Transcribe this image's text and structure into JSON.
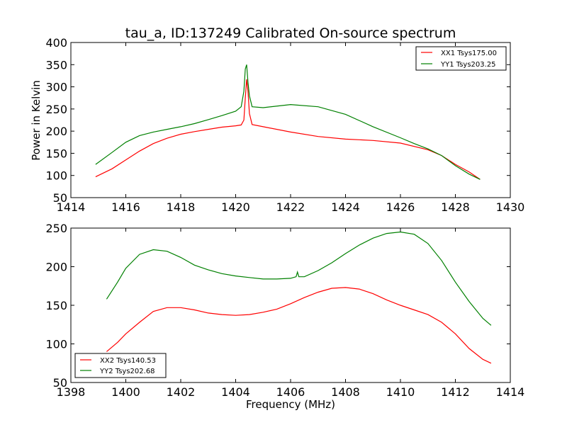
{
  "title": "tau_a, ID:137249 Calibrated On-source spectrum",
  "chart_data": [
    {
      "type": "line",
      "ylabel": "Power in Kelvin",
      "xlabel": "",
      "xlim": [
        1414,
        1430
      ],
      "ylim": [
        50,
        400
      ],
      "xticks": [
        1414,
        1416,
        1418,
        1420,
        1422,
        1424,
        1426,
        1428,
        1430
      ],
      "yticks": [
        50,
        100,
        150,
        200,
        250,
        300,
        350,
        400
      ],
      "legend": "top-right",
      "series": [
        {
          "name": "XX1 Tsys175.00",
          "color": "#ff0000",
          "points": [
            [
              1414.9,
              97
            ],
            [
              1415.5,
              115
            ],
            [
              1416,
              135
            ],
            [
              1416.5,
              155
            ],
            [
              1417,
              172
            ],
            [
              1417.5,
              184
            ],
            [
              1418,
              193
            ],
            [
              1418.5,
              199
            ],
            [
              1419,
              204
            ],
            [
              1419.5,
              209
            ],
            [
              1420,
              212
            ],
            [
              1420.2,
              214
            ],
            [
              1420.3,
              225
            ],
            [
              1420.35,
              275
            ],
            [
              1420.4,
              317
            ],
            [
              1420.45,
              290
            ],
            [
              1420.5,
              240
            ],
            [
              1420.6,
              215
            ],
            [
              1421,
              210
            ],
            [
              1422,
              198
            ],
            [
              1423,
              188
            ],
            [
              1424,
              182
            ],
            [
              1425,
              179
            ],
            [
              1426,
              173
            ],
            [
              1427,
              158
            ],
            [
              1427.5,
              145
            ],
            [
              1428,
              125
            ],
            [
              1428.5,
              108
            ],
            [
              1428.9,
              91
            ]
          ]
        },
        {
          "name": "YY1 Tsys203.25",
          "color": "#008000",
          "points": [
            [
              1414.9,
              125
            ],
            [
              1415.5,
              152
            ],
            [
              1416,
              175
            ],
            [
              1416.5,
              190
            ],
            [
              1417,
              198
            ],
            [
              1417.5,
              204
            ],
            [
              1418,
              210
            ],
            [
              1418.5,
              217
            ],
            [
              1419,
              226
            ],
            [
              1419.5,
              235
            ],
            [
              1420,
              245
            ],
            [
              1420.2,
              255
            ],
            [
              1420.3,
              290
            ],
            [
              1420.35,
              340
            ],
            [
              1420.4,
              350
            ],
            [
              1420.45,
              310
            ],
            [
              1420.5,
              280
            ],
            [
              1420.6,
              255
            ],
            [
              1421,
              253
            ],
            [
              1422,
              260
            ],
            [
              1423,
              255
            ],
            [
              1424,
              238
            ],
            [
              1425,
              210
            ],
            [
              1426,
              185
            ],
            [
              1426.5,
              172
            ],
            [
              1427,
              160
            ],
            [
              1427.5,
              145
            ],
            [
              1428,
              122
            ],
            [
              1428.5,
              103
            ],
            [
              1428.9,
              91
            ]
          ]
        }
      ]
    },
    {
      "type": "line",
      "ylabel": "",
      "xlabel": "Frequency (MHz)",
      "xlim": [
        1398,
        1414
      ],
      "ylim": [
        50,
        250
      ],
      "xticks": [
        1398,
        1400,
        1402,
        1404,
        1406,
        1408,
        1410,
        1412,
        1414
      ],
      "yticks": [
        50,
        100,
        150,
        200,
        250
      ],
      "legend": "bottom-left",
      "series": [
        {
          "name": "XX2 Tsys140.53",
          "color": "#ff0000",
          "points": [
            [
              1399.3,
              90
            ],
            [
              1399.7,
              102
            ],
            [
              1400,
              113
            ],
            [
              1400.5,
              128
            ],
            [
              1401,
              142
            ],
            [
              1401.5,
              147
            ],
            [
              1402,
              147
            ],
            [
              1402.5,
              144
            ],
            [
              1403,
              140
            ],
            [
              1403.5,
              138
            ],
            [
              1404,
              137
            ],
            [
              1404.5,
              138
            ],
            [
              1405,
              141
            ],
            [
              1405.5,
              145
            ],
            [
              1406,
              152
            ],
            [
              1406.5,
              160
            ],
            [
              1407,
              167
            ],
            [
              1407.5,
              172
            ],
            [
              1408,
              173
            ],
            [
              1408.5,
              171
            ],
            [
              1409,
              165
            ],
            [
              1409.5,
              157
            ],
            [
              1410,
              150
            ],
            [
              1410.5,
              144
            ],
            [
              1411,
              138
            ],
            [
              1411.5,
              128
            ],
            [
              1412,
              113
            ],
            [
              1412.5,
              94
            ],
            [
              1413,
              80
            ],
            [
              1413.3,
              75
            ]
          ]
        },
        {
          "name": "YY2 Tsys202.68",
          "color": "#008000",
          "points": [
            [
              1399.3,
              158
            ],
            [
              1399.7,
              180
            ],
            [
              1400,
              198
            ],
            [
              1400.5,
              216
            ],
            [
              1401,
              222
            ],
            [
              1401.5,
              220
            ],
            [
              1402,
              212
            ],
            [
              1402.5,
              202
            ],
            [
              1403,
              196
            ],
            [
              1403.5,
              191
            ],
            [
              1404,
              188
            ],
            [
              1404.5,
              186
            ],
            [
              1405,
              184
            ],
            [
              1405.5,
              184
            ],
            [
              1406,
              185
            ],
            [
              1406.2,
              187
            ],
            [
              1406.25,
              193
            ],
            [
              1406.3,
              187
            ],
            [
              1406.5,
              187
            ],
            [
              1407,
              195
            ],
            [
              1407.5,
              205
            ],
            [
              1408,
              217
            ],
            [
              1408.5,
              228
            ],
            [
              1409,
              237
            ],
            [
              1409.5,
              243
            ],
            [
              1410,
              245
            ],
            [
              1410.5,
              242
            ],
            [
              1411,
              230
            ],
            [
              1411.5,
              208
            ],
            [
              1412,
              180
            ],
            [
              1412.5,
              155
            ],
            [
              1413,
              133
            ],
            [
              1413.3,
              124
            ]
          ]
        }
      ]
    }
  ]
}
